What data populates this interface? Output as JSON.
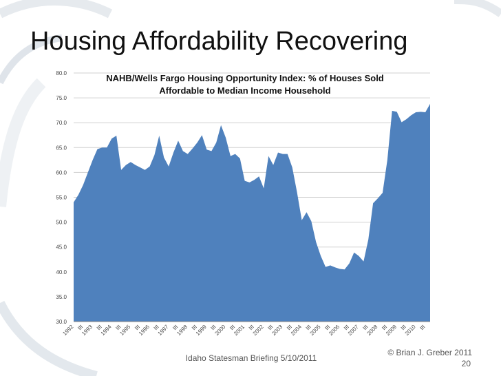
{
  "slide": {
    "title": "Housing Affordability Recovering",
    "footer": "Idaho Statesman Briefing 5/10/2011",
    "copyright": "© Brian J. Greber 2011",
    "page": "20"
  },
  "chart_data": {
    "type": "area",
    "title": [
      "NAHB/Wells Fargo Housing Opportunity Index: % of Houses Sold",
      "Affordable to Median Income Household"
    ],
    "categories": [
      "1992",
      null,
      "III",
      null,
      "1993",
      null,
      "III",
      null,
      "1994",
      null,
      "III",
      null,
      "1995",
      null,
      "III",
      null,
      "1996",
      null,
      "III",
      null,
      "1997",
      null,
      "III",
      null,
      "1998",
      null,
      "III",
      null,
      "1999",
      null,
      "III",
      null,
      "2000",
      null,
      "III",
      null,
      "2001",
      null,
      "III",
      null,
      "2002",
      null,
      "III",
      null,
      "2003",
      null,
      "III",
      null,
      "2004",
      null,
      "III",
      null,
      "2005",
      null,
      "III",
      null,
      "2006",
      null,
      "III",
      null,
      "2007",
      null,
      "III",
      null,
      "2008",
      null,
      "III",
      null,
      "2009",
      null,
      "III",
      null,
      "2010",
      null,
      "III",
      null
    ],
    "values": [
      54,
      55.5,
      57.5,
      60,
      62.5,
      64.7,
      65,
      65,
      66.8,
      67.4,
      60.5,
      61.5,
      62.1,
      61.5,
      61,
      60.5,
      61.2,
      63.5,
      67.4,
      63,
      61.2,
      64,
      66.4,
      64.3,
      63.7,
      64.8,
      66,
      67.5,
      64.6,
      64.3,
      66,
      69.5,
      67,
      63.3,
      63.7,
      62.8,
      58.3,
      58,
      58.5,
      59.2,
      56.8,
      63.3,
      61.5,
      64,
      63.7,
      63.7,
      61,
      56,
      50.4,
      52,
      50.2,
      46,
      43.2,
      41,
      41.3,
      40.9,
      40.6,
      40.5,
      41.7,
      43.9,
      43.2,
      42.1,
      46.5,
      53.8,
      54.8,
      55.9,
      62.5,
      72.4,
      72.2,
      70.1,
      70.7,
      71.5,
      72.1,
      72.2,
      72.1,
      73.8
    ],
    "color": "#4f81bd",
    "ylim": [
      30,
      80
    ],
    "yticks": [
      {
        "value": 30,
        "label": "30.0"
      },
      {
        "value": 35,
        "label": "35.0"
      },
      {
        "value": 40,
        "label": "40.0"
      },
      {
        "value": 45,
        "label": "45.0"
      },
      {
        "value": 50,
        "label": "50.0"
      },
      {
        "value": 55,
        "label": "55.0"
      },
      {
        "value": 60,
        "label": "60.0"
      },
      {
        "value": 65,
        "label": "65.0"
      },
      {
        "value": 70,
        "label": "70.0"
      },
      {
        "value": 75,
        "label": "75.0"
      },
      {
        "value": 80,
        "label": "80.0"
      }
    ],
    "grid": true
  }
}
